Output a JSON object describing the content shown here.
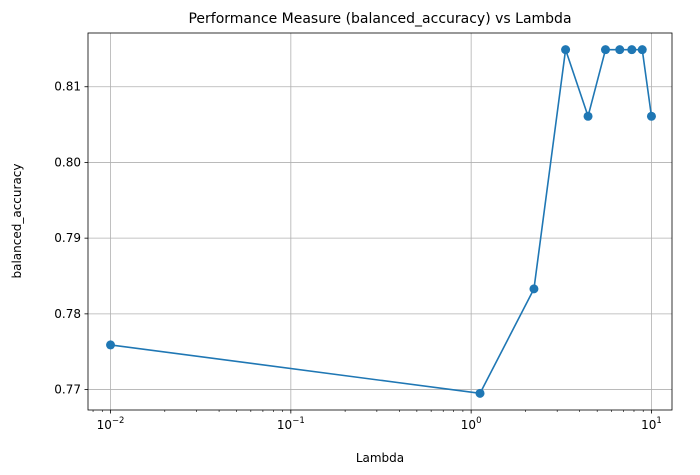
{
  "chart_data": {
    "type": "line",
    "title": "Performance Measure (balanced_accuracy) vs Lambda",
    "xlabel": "Lambda",
    "ylabel": "balanced_accuracy",
    "xscale": "log",
    "xlim": [
      0.0075,
      13
    ],
    "ylim": [
      0.7673,
      0.8171
    ],
    "grid": true,
    "x_ticks": [
      {
        "value": 0.01,
        "base": "10",
        "exp": "−2"
      },
      {
        "value": 0.1,
        "base": "10",
        "exp": "−1"
      },
      {
        "value": 1,
        "base": "10",
        "exp": "0"
      },
      {
        "value": 10,
        "base": "10",
        "exp": "1"
      }
    ],
    "y_ticks": [
      {
        "value": 0.77,
        "label": "0.77"
      },
      {
        "value": 0.78,
        "label": "0.78"
      },
      {
        "value": 0.79,
        "label": "0.79"
      },
      {
        "value": 0.8,
        "label": "0.80"
      },
      {
        "value": 0.81,
        "label": "0.81"
      }
    ],
    "series": [
      {
        "color": "#1f77b4",
        "marker": "circle",
        "x": [
          0.01,
          1.12,
          2.23,
          3.34,
          4.45,
          5.56,
          6.67,
          7.78,
          8.89,
          10.0
        ],
        "y": [
          0.7759,
          0.7695,
          0.7833,
          0.8149,
          0.8061,
          0.8149,
          0.8149,
          0.8149,
          0.8149,
          0.8061
        ]
      }
    ]
  }
}
